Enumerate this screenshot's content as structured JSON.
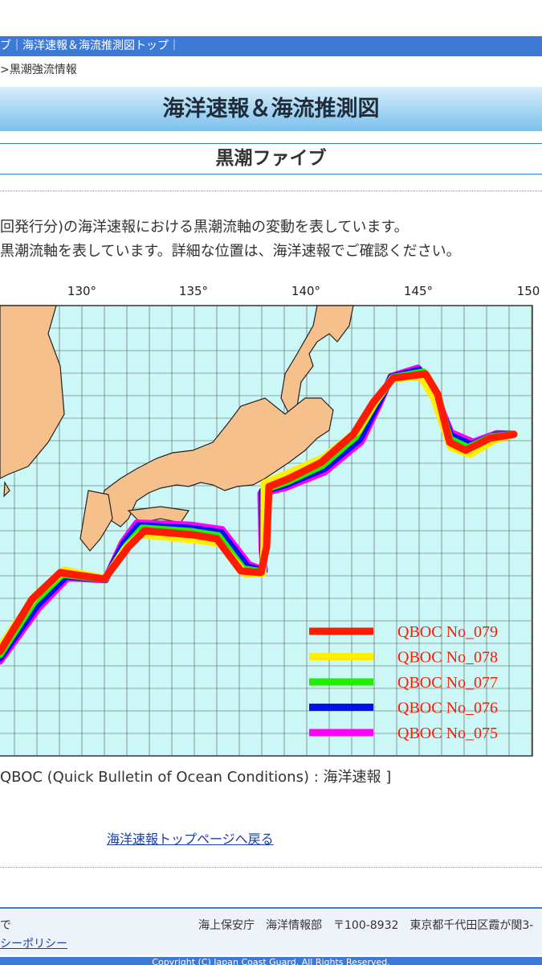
{
  "nav": {
    "text": "ブ｜海洋速報＆海流推測図トップ｜"
  },
  "breadcrumb": ">黒潮強流情報",
  "header": {
    "title": "海洋速報＆海流推測図",
    "subtitle": "黒潮ファイブ"
  },
  "description": [
    "回発行分)の海洋速報における黒潮流軸の変動を表しています。",
    "黒潮流軸を表しています。詳細な位置は、海洋速報でご確認ください。"
  ],
  "map": {
    "lon_labels": [
      "130°",
      "135°",
      "140°",
      "145°",
      "150"
    ],
    "legend": [
      {
        "name": "QBOC No_079",
        "color": "#ff1a00"
      },
      {
        "name": "QBOC No_078",
        "color": "#ffee00"
      },
      {
        "name": "QBOC No_077",
        "color": "#22ee00"
      },
      {
        "name": "QBOC No_076",
        "color": "#0010ee"
      },
      {
        "name": "QBOC No_075",
        "color": "#ff00ff"
      }
    ]
  },
  "caption": "QBOC (Quick Bulletin of Ocean Conditions) : 海洋速報 ]",
  "back_link": "海洋速報トップページへ戻る",
  "footer": {
    "left": "で",
    "policy": "シーポリシー",
    "address": "海上保安庁　海洋情報部　〒100-8932　東京都千代田区霞が関3-",
    "copyright": "Copyright (C) Japan Coast Guard. All Rights Reserved."
  }
}
